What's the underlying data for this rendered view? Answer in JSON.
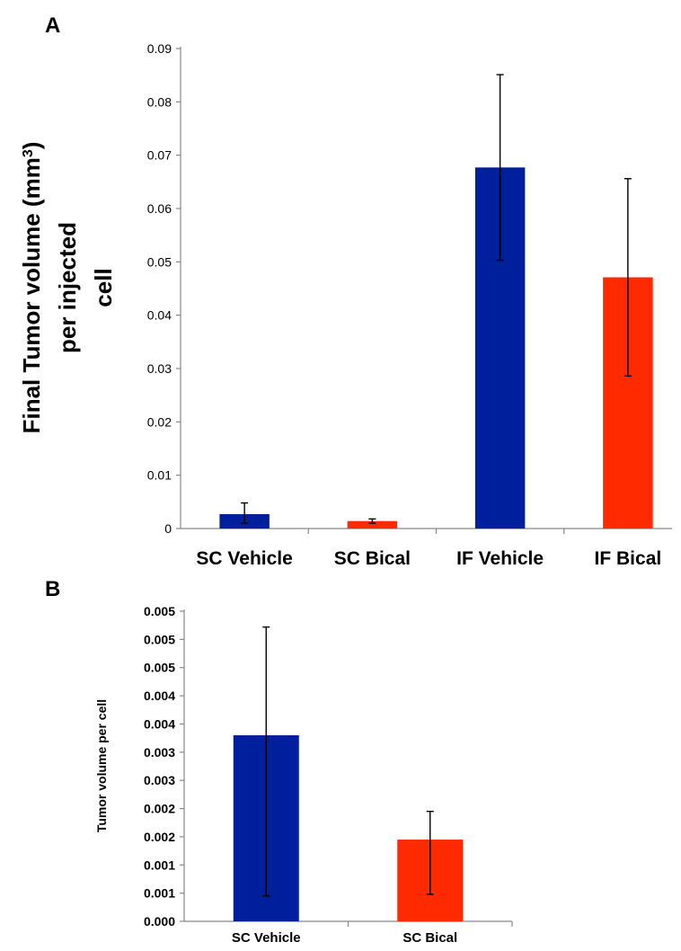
{
  "chart_data": [
    {
      "panel": "A",
      "type": "bar",
      "categories": [
        "SC Vehicle",
        "SC Bical",
        "IF Vehicle",
        "IF Bical"
      ],
      "values": [
        0.0027,
        0.0014,
        0.0677,
        0.0471
      ],
      "error_low": [
        0.001,
        0.001,
        0.0503,
        0.0286
      ],
      "error_high": [
        0.0048,
        0.0018,
        0.0851,
        0.0656
      ],
      "colors": [
        "#001f9c",
        "#ff2a00",
        "#001f9c",
        "#ff2a00"
      ],
      "ylabel_lines": [
        "Final Tumor volume (mm",
        "per injected",
        "cell"
      ],
      "ylabel_superscript": "3",
      "ylabel_close": ")",
      "ylim": [
        0,
        0.09
      ],
      "ticks": [
        0,
        0.01,
        0.02,
        0.03,
        0.04,
        0.05,
        0.06,
        0.07,
        0.08,
        0.09
      ],
      "tick_labels": [
        "0",
        "0.01",
        "0.02",
        "0.03",
        "0.04",
        "0.05",
        "0.06",
        "0.07",
        "0.08",
        "0.09"
      ],
      "grid": false
    },
    {
      "panel": "B",
      "type": "bar",
      "categories": [
        "SC Vehicle",
        "SC Bical"
      ],
      "values": [
        0.0033,
        0.00145
      ],
      "error_low": [
        0.00045,
        0.00048
      ],
      "error_high": [
        0.00522,
        0.00195
      ],
      "colors": [
        "#001f9c",
        "#ff2a00"
      ],
      "ylabel": "Tumor volume per cell",
      "ylim": [
        0,
        0.0055
      ],
      "ticks": [
        0,
        0.0005,
        0.001,
        0.0015,
        0.002,
        0.0025,
        0.003,
        0.0035,
        0.004,
        0.0045,
        0.005,
        0.0055
      ],
      "tick_labels": [
        "0.000",
        "0.001",
        "0.001",
        "0.002",
        "0.002",
        "0.003",
        "0.003",
        "0.004",
        "0.004",
        "0.005",
        "0.005",
        "0.005"
      ],
      "grid": false
    }
  ]
}
